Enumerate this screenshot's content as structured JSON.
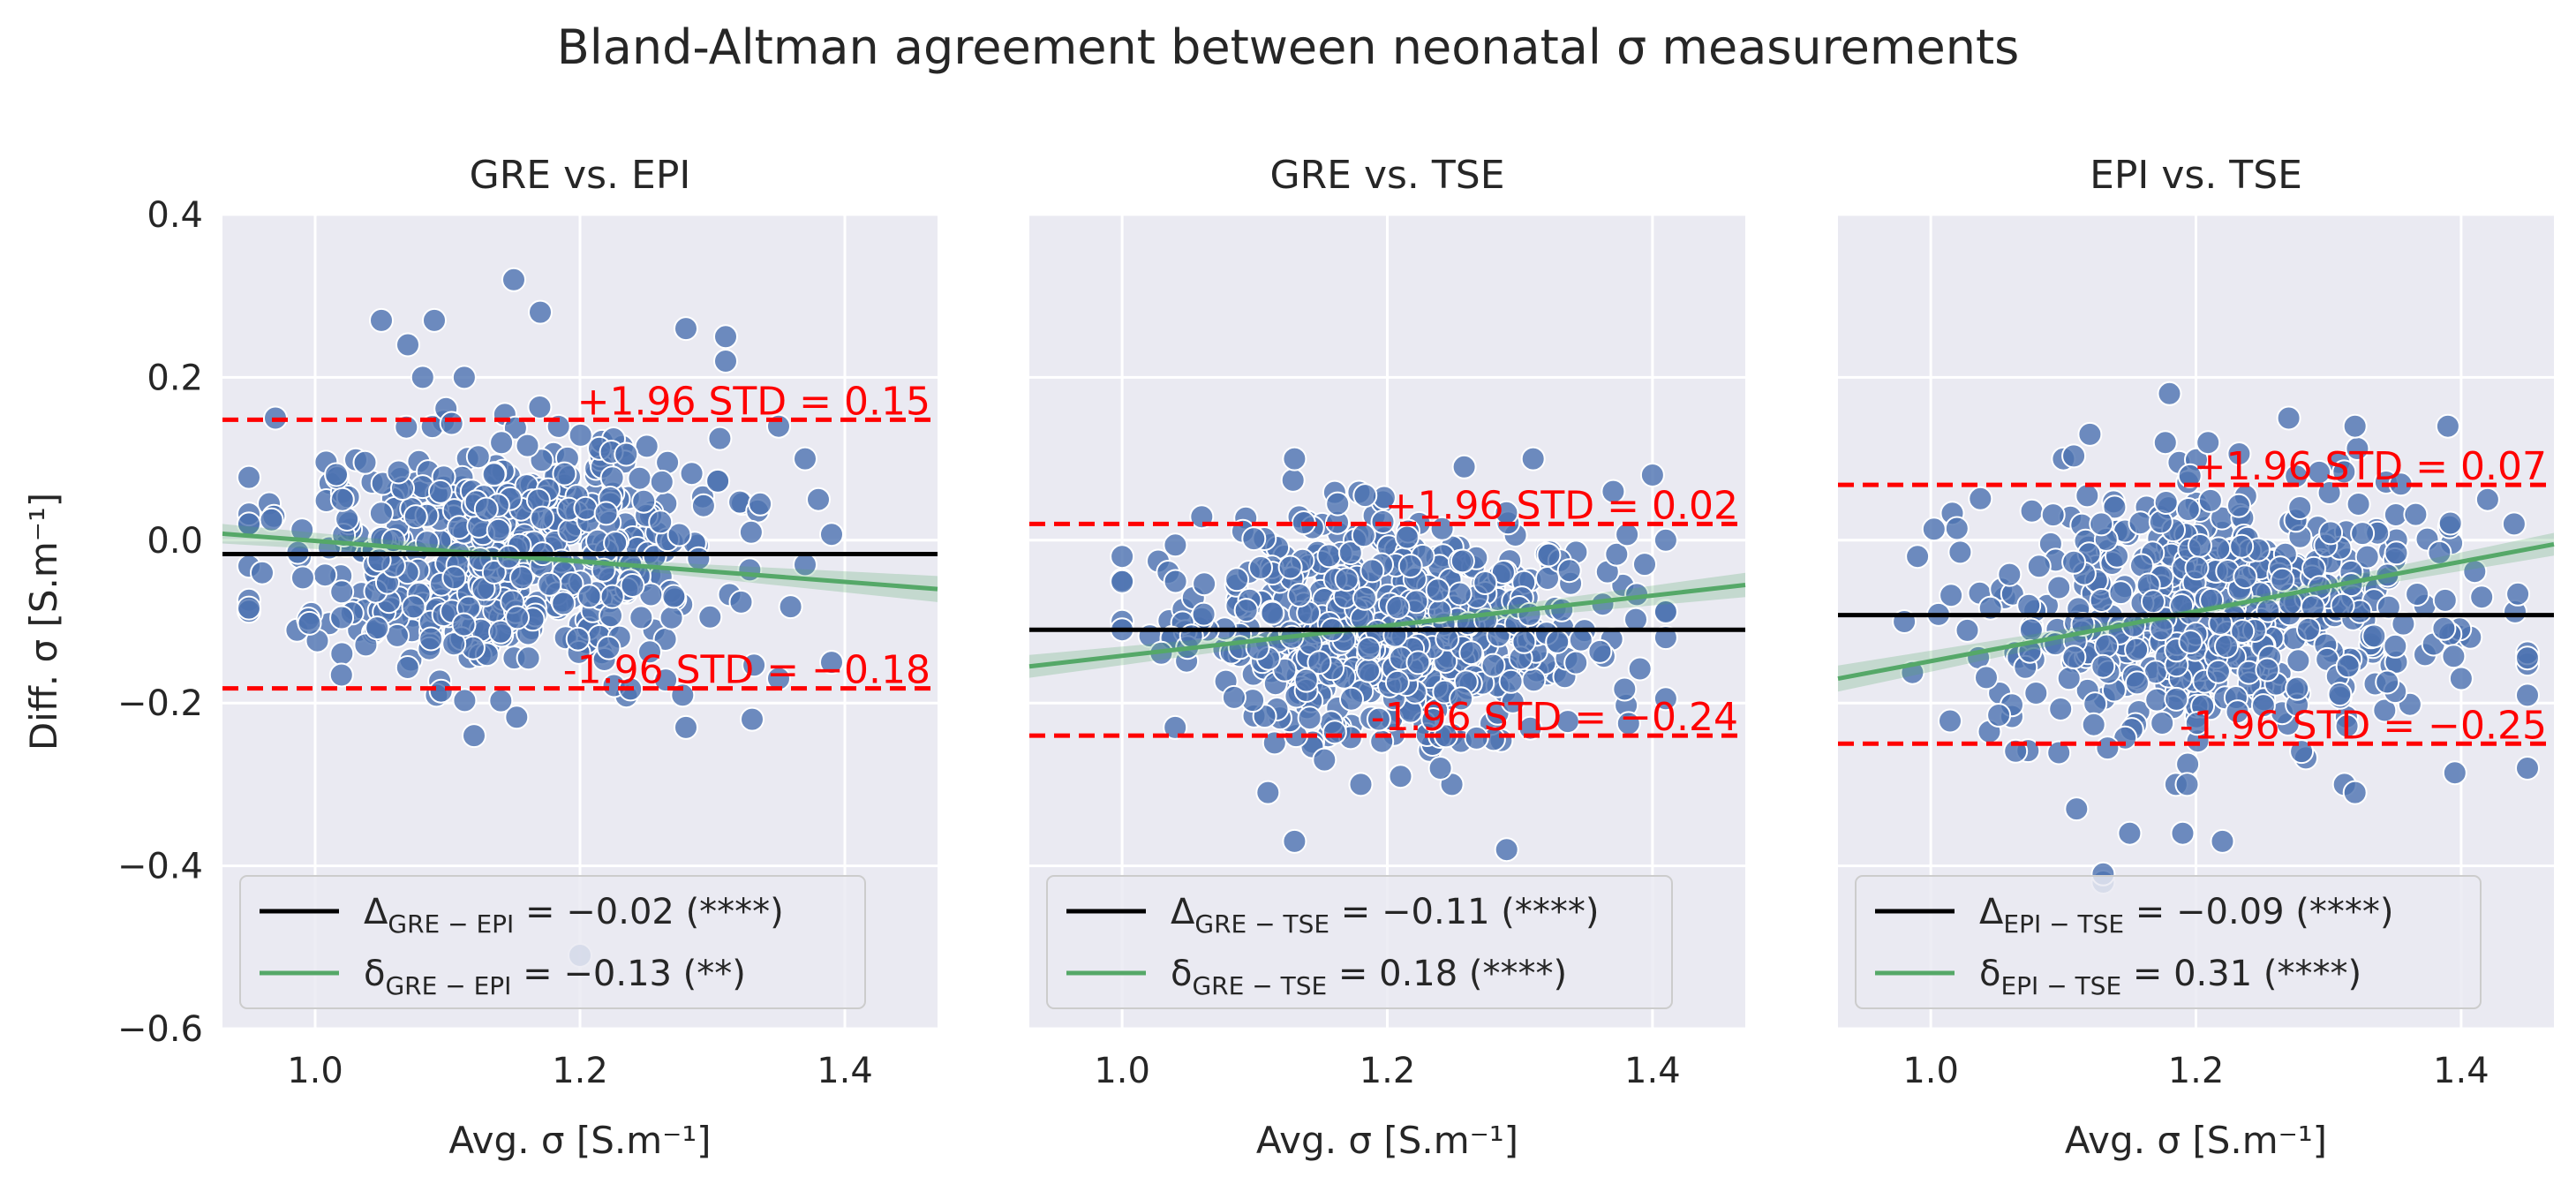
{
  "figure": {
    "title": "Bland-Altman agreement between neonatal σ measurements"
  },
  "colors": {
    "axes_bg": "#eaeaf2",
    "grid": "#ffffff",
    "scatter": "#4c72b0",
    "mean_line": "#000000",
    "regression": "#55a868",
    "limits": "#ff0000",
    "text": "#262626"
  },
  "chart_data": [
    {
      "type": "scatter",
      "title": "GRE vs. EPI",
      "xlabel": "Avg. σ [S.m⁻¹]",
      "ylabel": "Diff. σ [S.m⁻¹]",
      "xlim": [
        0.93,
        1.47
      ],
      "ylim": [
        -0.6,
        0.4
      ],
      "xticks": [
        1.0,
        1.2,
        1.4
      ],
      "xtick_labels": [
        "1.0",
        "1.2",
        "1.4"
      ],
      "yticks": [
        -0.6,
        -0.4,
        -0.2,
        0.0,
        0.2,
        0.4
      ],
      "ytick_labels": [
        "−0.6",
        "−0.4",
        "−0.2",
        "0.0",
        "0.2",
        "0.4"
      ],
      "grid": true,
      "legend_position": "lower-left",
      "mean_diff": -0.017,
      "upper_loa": 0.148,
      "lower_loa": -0.182,
      "upper_label": "+1.96 STD = 0.15",
      "lower_label": "-1.96 STD = −0.18",
      "regression_line": {
        "x": [
          0.93,
          1.47
        ],
        "y": [
          0.008,
          -0.06
        ],
        "ci_halfwidth": [
          0.012,
          0.004,
          0.016
        ]
      },
      "legend": [
        {
          "kind": "mean",
          "sym": "Δ",
          "sub": "GRE − EPI",
          "value": " = −0.02 (****)"
        },
        {
          "kind": "regression",
          "sym": "δ",
          "sub": "GRE − EPI",
          "value": " = −0.13 (**)"
        }
      ],
      "cloud": {
        "n": 560,
        "x_mean": 1.15,
        "x_sd": 0.085,
        "x_range": [
          0.95,
          1.39
        ],
        "y_mean": -0.02,
        "y_sd": 0.075,
        "y_range": [
          -0.24,
          0.2
        ]
      },
      "points": [
        {
          "x": 1.15,
          "y": 0.32
        },
        {
          "x": 1.17,
          "y": 0.28
        },
        {
          "x": 1.05,
          "y": 0.27
        },
        {
          "x": 1.09,
          "y": 0.27
        },
        {
          "x": 1.28,
          "y": 0.26
        },
        {
          "x": 1.31,
          "y": 0.25
        },
        {
          "x": 1.31,
          "y": 0.22
        },
        {
          "x": 1.07,
          "y": 0.24
        },
        {
          "x": 1.35,
          "y": 0.14
        },
        {
          "x": 1.37,
          "y": 0.1
        },
        {
          "x": 1.38,
          "y": 0.05
        },
        {
          "x": 1.37,
          "y": -0.03
        },
        {
          "x": 1.39,
          "y": -0.15
        },
        {
          "x": 1.35,
          "y": -0.17
        },
        {
          "x": 1.33,
          "y": -0.22
        },
        {
          "x": 1.28,
          "y": -0.23
        },
        {
          "x": 1.12,
          "y": -0.24
        },
        {
          "x": 1.2,
          "y": -0.51
        },
        {
          "x": 0.95,
          "y": 0.02
        },
        {
          "x": 0.96,
          "y": -0.04
        },
        {
          "x": 0.97,
          "y": 0.15
        }
      ]
    },
    {
      "type": "scatter",
      "title": "GRE vs. TSE",
      "xlabel": "Avg. σ [S.m⁻¹]",
      "ylabel": "",
      "xlim": [
        0.93,
        1.47
      ],
      "ylim": [
        -0.6,
        0.4
      ],
      "xticks": [
        1.0,
        1.2,
        1.4
      ],
      "xtick_labels": [
        "1.0",
        "1.2",
        "1.4"
      ],
      "yticks": [
        -0.6,
        -0.4,
        -0.2,
        0.0,
        0.2,
        0.4
      ],
      "ytick_labels": [],
      "grid": true,
      "legend_position": "lower-left",
      "mean_diff": -0.11,
      "upper_loa": 0.02,
      "lower_loa": -0.24,
      "upper_label": "+1.96 STD = 0.02",
      "lower_label": "-1.96 STD = −0.24",
      "regression_line": {
        "x": [
          0.93,
          1.47
        ],
        "y": [
          -0.155,
          -0.055
        ],
        "ci_halfwidth": [
          0.014,
          0.004,
          0.015
        ]
      },
      "legend": [
        {
          "kind": "mean",
          "sym": "Δ",
          "sub": "GRE − TSE",
          "value": " = −0.11 (****)"
        },
        {
          "kind": "regression",
          "sym": "δ",
          "sub": "GRE − TSE",
          "value": " = 0.18 (****)"
        }
      ],
      "cloud": {
        "n": 600,
        "x_mean": 1.2,
        "x_sd": 0.075,
        "x_range": [
          1.0,
          1.41
        ],
        "y_mean": -0.11,
        "y_sd": 0.065,
        "y_range": [
          -0.3,
          0.09
        ]
      },
      "points": [
        {
          "x": 1.13,
          "y": -0.37
        },
        {
          "x": 1.29,
          "y": -0.38
        },
        {
          "x": 1.11,
          "y": -0.31
        },
        {
          "x": 1.18,
          "y": -0.3
        },
        {
          "x": 1.21,
          "y": -0.29
        },
        {
          "x": 1.24,
          "y": -0.28
        },
        {
          "x": 1.13,
          "y": 0.1
        },
        {
          "x": 1.31,
          "y": 0.1
        },
        {
          "x": 1.41,
          "y": 0.0
        },
        {
          "x": 1.4,
          "y": 0.08
        },
        {
          "x": 1.0,
          "y": -0.02
        },
        {
          "x": 1.0,
          "y": -0.11
        },
        {
          "x": 1.04,
          "y": -0.23
        }
      ]
    },
    {
      "type": "scatter",
      "title": "EPI vs. TSE",
      "xlabel": "Avg. σ [S.m⁻¹]",
      "ylabel": "",
      "xlim": [
        0.93,
        1.47
      ],
      "ylim": [
        -0.6,
        0.4
      ],
      "xticks": [
        1.0,
        1.2,
        1.4
      ],
      "xtick_labels": [
        "1.0",
        "1.2",
        "1.4"
      ],
      "yticks": [
        -0.6,
        -0.4,
        -0.2,
        0.0,
        0.2,
        0.4
      ],
      "ytick_labels": [],
      "grid": true,
      "legend_position": "lower-left",
      "mean_diff": -0.092,
      "upper_loa": 0.068,
      "lower_loa": -0.25,
      "upper_label": "+1.96 STD = 0.07",
      "lower_label": "-1.96 STD = −0.25",
      "regression_line": {
        "x": [
          0.93,
          1.47
        ],
        "y": [
          -0.17,
          -0.005
        ],
        "ci_halfwidth": [
          0.016,
          0.004,
          0.014
        ]
      },
      "legend": [
        {
          "kind": "mean",
          "sym": "Δ",
          "sub": "EPI − TSE",
          "value": " = −0.09 (****)"
        },
        {
          "kind": "regression",
          "sym": "δ",
          "sub": "EPI − TSE",
          "value": " = 0.31 (****)"
        }
      ],
      "cloud": {
        "n": 560,
        "x_mean": 1.22,
        "x_sd": 0.085,
        "x_range": [
          0.98,
          1.45
        ],
        "y_mean": -0.09,
        "y_sd": 0.08,
        "y_range": [
          -0.3,
          0.12
        ]
      },
      "points": [
        {
          "x": 1.18,
          "y": 0.18
        },
        {
          "x": 1.27,
          "y": 0.15
        },
        {
          "x": 1.32,
          "y": 0.14
        },
        {
          "x": 1.39,
          "y": 0.14
        },
        {
          "x": 1.12,
          "y": 0.13
        },
        {
          "x": 1.42,
          "y": 0.05
        },
        {
          "x": 1.44,
          "y": 0.02
        },
        {
          "x": 1.13,
          "y": -0.42
        },
        {
          "x": 1.13,
          "y": -0.41
        },
        {
          "x": 1.15,
          "y": -0.36
        },
        {
          "x": 1.19,
          "y": -0.36
        },
        {
          "x": 1.22,
          "y": -0.37
        },
        {
          "x": 1.11,
          "y": -0.33
        },
        {
          "x": 1.32,
          "y": -0.31
        },
        {
          "x": 0.98,
          "y": -0.1
        },
        {
          "x": 0.99,
          "y": -0.02
        },
        {
          "x": 1.4,
          "y": -0.17
        }
      ]
    }
  ]
}
